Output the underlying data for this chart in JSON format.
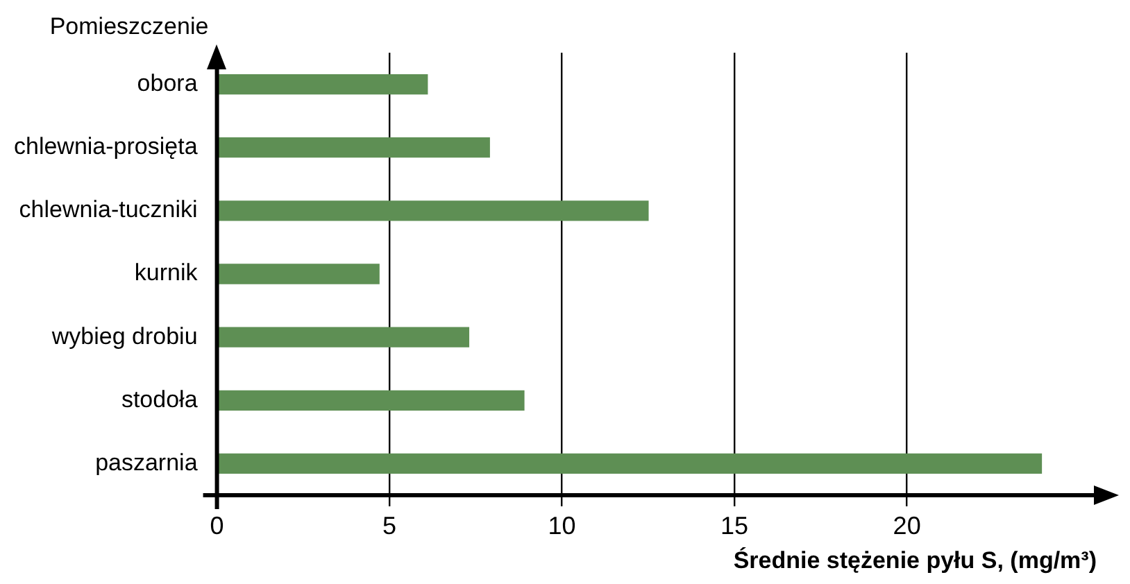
{
  "chart_data": {
    "type": "bar",
    "orientation": "horizontal",
    "ylabel": "Pomieszczenie",
    "xlabel": "Średnie stężenie pyłu S, (mg/m³)",
    "categories": [
      "obora",
      "chlewnia-prosięta",
      "chlewnia-tuczniki",
      "kurnik",
      "wybieg drobiu",
      "stodoła",
      "paszarnia"
    ],
    "values": [
      6.1,
      7.9,
      12.5,
      4.7,
      7.3,
      8.9,
      23.9
    ],
    "color": "#5e8f54",
    "xlim": [
      0,
      25.5
    ],
    "xticks": [
      0,
      5,
      10,
      15,
      20
    ],
    "grid": "x",
    "legend": false
  }
}
